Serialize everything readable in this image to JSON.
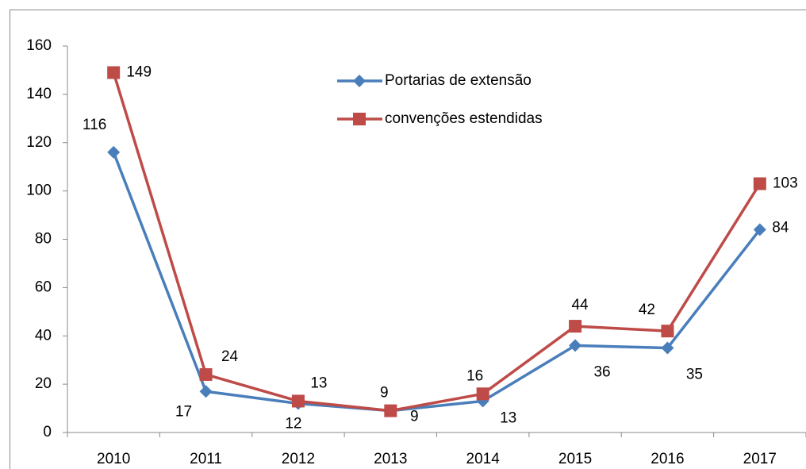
{
  "chart_data": {
    "type": "line",
    "categories": [
      "2010",
      "2011",
      "2012",
      "2013",
      "2014",
      "2015",
      "2016",
      "2017"
    ],
    "series": [
      {
        "name": "Portarias de extensão",
        "color": "#4a7ebb",
        "values": [
          116,
          17,
          12,
          9,
          13,
          36,
          35,
          84
        ]
      },
      {
        "name": "convenções estendidas",
        "color": "#be4b48",
        "values": [
          149,
          24,
          13,
          9,
          16,
          44,
          42,
          103
        ]
      }
    ],
    "ylim": [
      0,
      160
    ],
    "yticks": [
      0,
      20,
      40,
      60,
      80,
      100,
      120,
      140,
      160
    ],
    "grid": false
  }
}
